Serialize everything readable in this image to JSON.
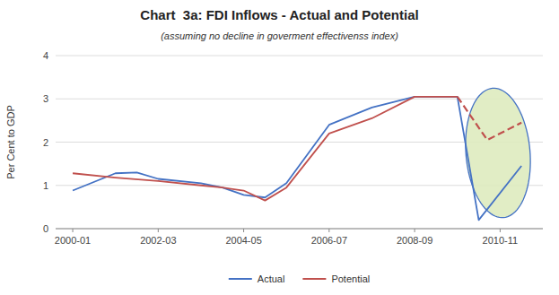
{
  "chart_data": {
    "type": "line",
    "title": "Chart  3a: FDI Inflows - Actual and Potential",
    "subtitle": "(assuming no decline in goverment effectivenss index)",
    "y_label": "Per Cent to GDP",
    "xlim": [
      -0.4,
      11.0
    ],
    "xticks": [
      {
        "value": 0,
        "label": "2000-01"
      },
      {
        "value": 2,
        "label": "2002-03"
      },
      {
        "value": 4,
        "label": "2004-05"
      },
      {
        "value": 6,
        "label": "2006-07"
      },
      {
        "value": 8,
        "label": "2008-09"
      },
      {
        "value": 10,
        "label": "2010-11"
      }
    ],
    "ylim": [
      0,
      4
    ],
    "yticks": [
      0,
      1,
      2,
      3,
      4
    ],
    "grid": true,
    "legend": "bottom",
    "series": [
      {
        "name": "Actual",
        "color": "#4472C4",
        "line_style": "solid",
        "x": [
          0,
          1,
          1.5,
          2,
          3,
          3.5,
          4,
          4.5,
          5,
          6,
          7,
          8,
          9,
          9.5,
          10.5
        ],
        "values": [
          0.88,
          1.28,
          1.3,
          1.15,
          1.05,
          0.95,
          0.78,
          0.72,
          1.05,
          2.4,
          2.8,
          3.05,
          3.05,
          0.2,
          1.45
        ]
      },
      {
        "name": "Potential",
        "color": "#C0504D",
        "line_style": "solid",
        "x": [
          0,
          1,
          2,
          3,
          3.5,
          4,
          4.5,
          5,
          6,
          7,
          8,
          9
        ],
        "values": [
          1.28,
          1.18,
          1.1,
          1.0,
          0.95,
          0.88,
          0.65,
          0.95,
          2.2,
          2.55,
          3.05,
          3.05
        ]
      },
      {
        "color": "#C0504D",
        "line_style": "dashed",
        "x": [
          9,
          9.7,
          10.5
        ],
        "values": [
          3.05,
          2.05,
          2.45
        ]
      }
    ],
    "ellipse": {
      "cx": 9.95,
      "cy": 1.75,
      "width": 1.5,
      "height": 3.0,
      "angle": 5,
      "color": "#deebbf",
      "edge_color": "#4472C4"
    }
  }
}
